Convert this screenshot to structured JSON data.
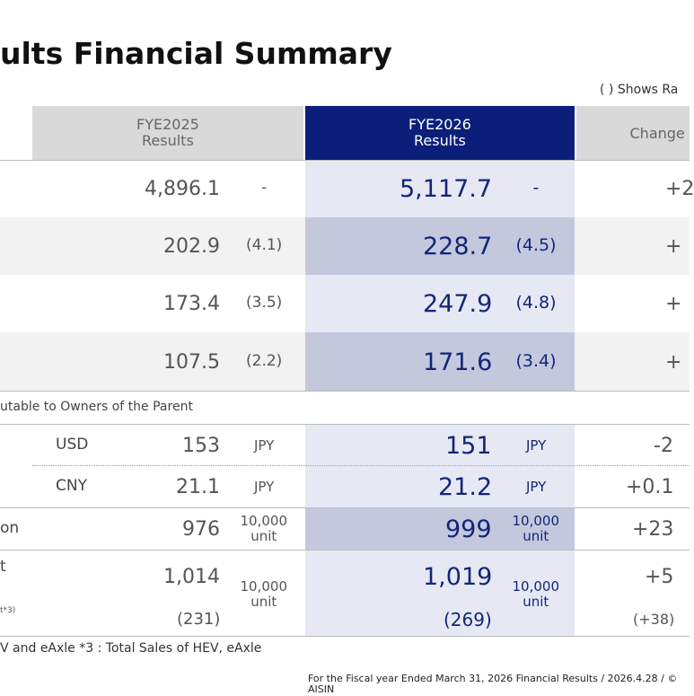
{
  "title": "ults Financial Summary",
  "note": "( ) Shows Ra",
  "header": {
    "fye2025": "FYE2025\nResults",
    "fye2026": "FYE2026\nResults",
    "change": "Change"
  },
  "rows": [
    {
      "fye2025": "4,896.1",
      "fye2025_ratio": "-",
      "fye2026": "5,117.7",
      "fye2026_ratio": "-",
      "change": "+2"
    },
    {
      "fye2025": "202.9",
      "fye2025_ratio": "(4.1)",
      "fye2026": "228.7",
      "fye2026_ratio": "(4.5)",
      "change": "+"
    },
    {
      "fye2025": "173.4",
      "fye2025_ratio": "(3.5)",
      "fye2026": "247.9",
      "fye2026_ratio": "(4.8)",
      "change": "+"
    },
    {
      "fye2025": "107.5",
      "fye2025_ratio": "(2.2)",
      "fye2026": "171.6",
      "fye2026_ratio": "(3.4)",
      "change": "+"
    }
  ],
  "section_label": "utable to Owners of the Parent",
  "assumptions": [
    {
      "label": "USD",
      "fye2025": "153",
      "unit2025": "JPY",
      "fye2026": "151",
      "unit2026": "JPY",
      "change": "-2"
    },
    {
      "label": "CNY",
      "fye2025": "21.1",
      "unit2025": "JPY",
      "fye2026": "21.2",
      "unit2026": "JPY",
      "change": "+0.1"
    },
    {
      "label": "on",
      "fye2025": "976",
      "unit2025": "10,000\nunit",
      "fye2026": "999",
      "unit2026": "10,000\nunit",
      "change": "+23"
    },
    {
      "label": "t",
      "note": "t*3)",
      "fye2025": "1,014",
      "unit2025": "10,000\nunit",
      "fye2026": "1,019",
      "unit2026": "10,000\nunit",
      "change": "+5",
      "sub2025": "(231)",
      "sub2026": "(269)",
      "subchange": "(+38)"
    }
  ],
  "footnote": "V and  eAxle    *3 : Total Sales of HEV, eAxle",
  "footer": "For the Fiscal year Ended March 31, 2026 Financial Results / 2026.4.28 / © AISIN"
}
